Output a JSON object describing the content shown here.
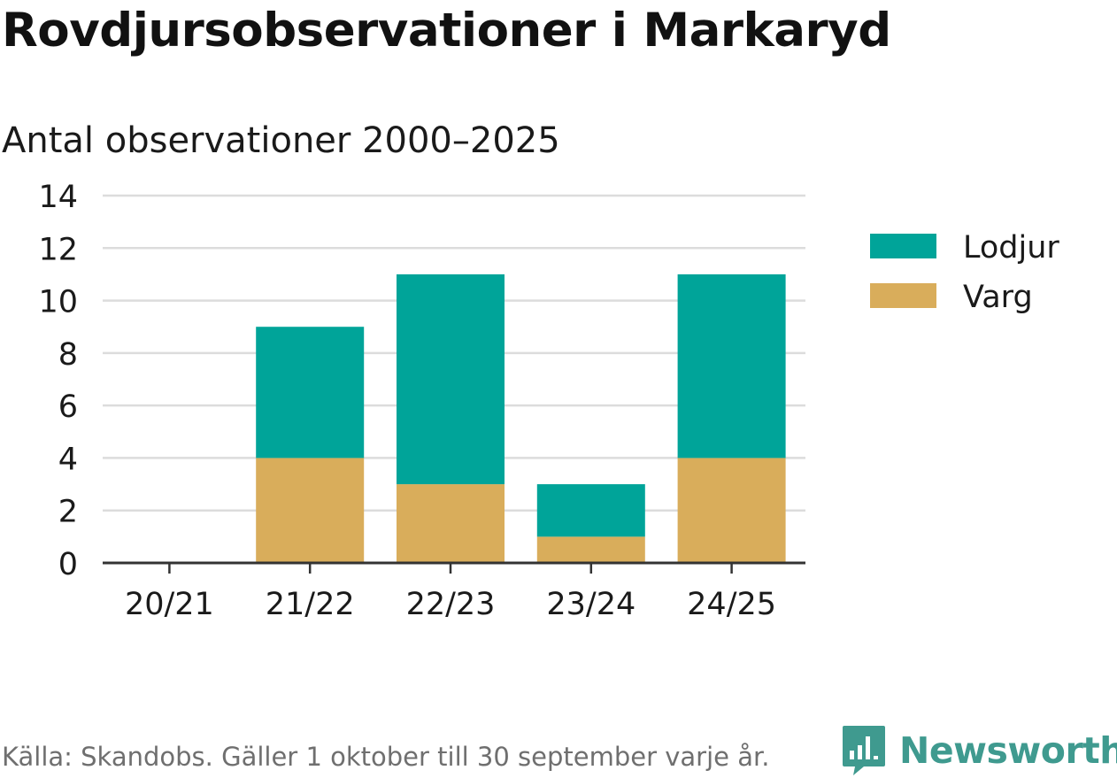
{
  "header": {
    "title": "Rovdjursobservationer i Markaryd",
    "subtitle": "Antal observationer 2000–2025"
  },
  "footer": {
    "source": "Källa: Skandobs. Gäller 1 oktober till 30 september varje år.",
    "brand": "Newsworthy"
  },
  "colors": {
    "lodjur": "#00a499",
    "varg": "#d9ad5b",
    "grid": "#dcdcdc",
    "axis": "#333333",
    "brand": "#3f9a8f"
  },
  "chart_data": {
    "type": "bar",
    "stacked": true,
    "title": "Rovdjursobservationer i Markaryd",
    "subtitle": "Antal observationer 2000–2025",
    "xlabel": "",
    "ylabel": "",
    "categories": [
      "20/21",
      "21/22",
      "22/23",
      "23/24",
      "24/25"
    ],
    "series": [
      {
        "name": "Varg",
        "values": [
          0,
          4,
          3,
          1,
          4
        ],
        "color_key": "varg"
      },
      {
        "name": "Lodjur",
        "values": [
          0,
          5,
          8,
          2,
          7
        ],
        "color_key": "lodjur"
      }
    ],
    "legend_order": [
      "Lodjur",
      "Varg"
    ],
    "legend_position": "right",
    "ylim": [
      0,
      14
    ],
    "yticks": [
      0,
      2,
      4,
      6,
      8,
      10,
      12,
      14
    ],
    "grid": true
  }
}
